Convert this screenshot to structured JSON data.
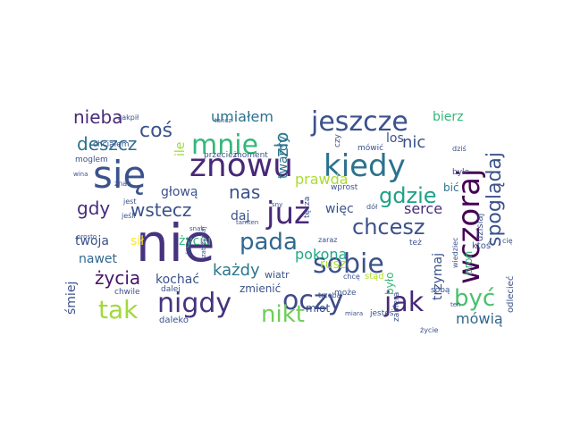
{
  "words": [
    {
      "text": "nie",
      "color": "#46327e",
      "rotated": false
    },
    {
      "text": "się",
      "color": "#3b528b",
      "rotated": false
    },
    {
      "text": "znowu",
      "color": "#482878",
      "rotated": false
    },
    {
      "text": "już",
      "color": "#482878",
      "rotated": false
    },
    {
      "text": "wczoraj",
      "color": "#440154",
      "rotated": true
    },
    {
      "text": "kiedy",
      "color": "#2c728e",
      "rotated": false
    },
    {
      "text": "jeszcze",
      "color": "#3b528b",
      "rotated": false
    },
    {
      "text": "sobie",
      "color": "#3b528b",
      "rotated": false
    },
    {
      "text": "oczy",
      "color": "#3e4a89",
      "rotated": false
    },
    {
      "text": "jak",
      "color": "#482878",
      "rotated": false
    },
    {
      "text": "mnie",
      "color": "#35b779",
      "rotated": false
    },
    {
      "text": "nigdy",
      "color": "#46327e",
      "rotated": false
    },
    {
      "text": "tak",
      "color": "#a0da39",
      "rotated": false
    },
    {
      "text": "nikt",
      "color": "#6ece58",
      "rotated": false
    },
    {
      "text": "być",
      "color": "#4ac16d",
      "rotated": false
    },
    {
      "text": "pada",
      "color": "#31688e",
      "rotated": false
    },
    {
      "text": "chcesz",
      "color": "#3b528b",
      "rotated": false
    },
    {
      "text": "gdzie",
      "color": "#1fa187",
      "rotated": false
    },
    {
      "text": "spoglądaj",
      "color": "#3b528b",
      "rotated": true
    },
    {
      "text": "coś",
      "color": "#3b528b",
      "rotated": false
    },
    {
      "text": "nieba",
      "color": "#472c7a",
      "rotated": false
    },
    {
      "text": "deszcz",
      "color": "#2c728e",
      "rotated": false
    },
    {
      "text": "wstecz",
      "color": "#3b528b",
      "rotated": false
    },
    {
      "text": "gdy",
      "color": "#472c7a",
      "rotated": false
    },
    {
      "text": "życia",
      "color": "#481467",
      "rotated": false
    },
    {
      "text": "każdy",
      "color": "#2a788e",
      "rotated": false
    },
    {
      "text": "nas",
      "color": "#3b528b",
      "rotated": false
    },
    {
      "text": "zło",
      "color": "#2a788e",
      "rotated": true
    },
    {
      "text": "nic",
      "color": "#3b528b",
      "rotated": false
    },
    {
      "text": "mówią",
      "color": "#31688e",
      "rotated": false
    },
    {
      "text": "trzymaj",
      "color": "#3b528b",
      "rotated": true
    },
    {
      "text": "serce",
      "color": "#472c7a",
      "rotated": false
    },
    {
      "text": "pokona",
      "color": "#22a884",
      "rotated": false
    },
    {
      "text": "prawda",
      "color": "#aadc32",
      "rotated": false
    },
    {
      "text": "twardy",
      "color": "#2c728e",
      "rotated": true
    },
    {
      "text": "umiałem",
      "color": "#2c728e",
      "rotated": false
    },
    {
      "text": "bierz",
      "color": "#35b779",
      "rotated": false
    },
    {
      "text": "los",
      "color": "#3b528b",
      "rotated": false
    },
    {
      "text": "bić",
      "color": "#2c728e",
      "rotated": false
    },
    {
      "text": "głową",
      "color": "#3b528b",
      "rotated": false
    },
    {
      "text": "ile",
      "color": "#a0da39",
      "rotated": true
    },
    {
      "text": "daj",
      "color": "#3b528b",
      "rotated": false
    },
    {
      "text": "więc",
      "color": "#3b528b",
      "rotated": false
    },
    {
      "text": "twoja",
      "color": "#3b528b",
      "rotated": false
    },
    {
      "text": "nawet",
      "color": "#31688e",
      "rotated": false
    },
    {
      "text": "sił",
      "color": "#fde725",
      "rotated": false
    },
    {
      "text": "życiu",
      "color": "#35b779",
      "rotated": false
    },
    {
      "text": "kochać",
      "color": "#3b528b",
      "rotated": false
    },
    {
      "text": "śmiej",
      "color": "#3b528b",
      "rotated": true
    },
    {
      "text": "zmienić",
      "color": "#3b528b",
      "rotated": false
    },
    {
      "text": "wiatr",
      "color": "#3b528b",
      "rotated": false
    },
    {
      "text": "młot",
      "color": "#3b528b",
      "rotated": false
    },
    {
      "text": "było",
      "color": "#35b779",
      "rotated": true
    },
    {
      "text": "broń",
      "color": "#35b779",
      "rotated": true
    },
    {
      "text": "rusz",
      "color": "#b5de2b",
      "rotated": false
    },
    {
      "text": "dzisiaj",
      "color": "#3b528b",
      "rotated": true
    },
    {
      "text": "ktoś",
      "color": "#3b528b",
      "rotated": false
    },
    {
      "text": "odlecieć",
      "color": "#3b528b",
      "rotated": true
    },
    {
      "text": "daleko",
      "color": "#3b528b",
      "rotated": false
    },
    {
      "text": "chwile",
      "color": "#3b528b",
      "rotated": false
    },
    {
      "text": "dalej",
      "color": "#3b528b",
      "rotated": false
    },
    {
      "text": "moglem",
      "color": "#3b528b",
      "rotated": false
    },
    {
      "text": "chciałem",
      "color": "#3b528b",
      "rotated": false
    },
    {
      "text": "znak",
      "color": "#3b528b",
      "rotated": false
    },
    {
      "text": "zakpił",
      "color": "#3b528b",
      "rotated": false
    },
    {
      "text": "tańcz",
      "color": "#3b528b",
      "rotated": false
    },
    {
      "text": "przecież",
      "color": "#3b528b",
      "rotated": false
    },
    {
      "text": "moment",
      "color": "#3b528b",
      "rotated": false
    },
    {
      "text": "tęcza",
      "color": "#3b528b",
      "rotated": true
    },
    {
      "text": "mówić",
      "color": "#3b528b",
      "rotated": false
    },
    {
      "text": "dziś",
      "color": "#3b528b",
      "rotated": false
    },
    {
      "text": "czy",
      "color": "#3b528b",
      "rotated": true
    },
    {
      "text": "wprost",
      "color": "#3b528b",
      "rotated": false
    },
    {
      "text": "dół",
      "color": "#3b528b",
      "rotated": false
    },
    {
      "text": "chcę",
      "color": "#3b528b",
      "rotated": false
    },
    {
      "text": "zaraz",
      "color": "#3b528b",
      "rotated": false
    },
    {
      "text": "też",
      "color": "#3b528b",
      "rotated": false
    },
    {
      "text": "stąd",
      "color": "#b5de2b",
      "rotated": false
    },
    {
      "text": "sobą",
      "color": "#3b528b",
      "rotated": false
    },
    {
      "text": "trzeba",
      "color": "#3b528b",
      "rotated": false
    },
    {
      "text": "zabiera",
      "color": "#3b528b",
      "rotated": true
    },
    {
      "text": "może",
      "color": "#3b528b",
      "rotated": false
    },
    {
      "text": "jesteś",
      "color": "#3b528b",
      "rotated": false
    },
    {
      "text": "miara",
      "color": "#3b528b",
      "rotated": false
    },
    {
      "text": "życie",
      "color": "#3b528b",
      "rotated": false
    },
    {
      "text": "ten",
      "color": "#3b528b",
      "rotated": false
    },
    {
      "text": "wiedziec",
      "color": "#3b528b",
      "rotated": true
    },
    {
      "text": "byle",
      "color": "#3b528b",
      "rotated": false
    },
    {
      "text": "cię",
      "color": "#3b528b",
      "rotated": false
    },
    {
      "text": "jest",
      "color": "#3b528b",
      "rotated": false
    },
    {
      "text": "jeśli",
      "color": "#3b528b",
      "rotated": false
    },
    {
      "text": "wina",
      "color": "#3b528b",
      "rotated": false
    },
    {
      "text": "prosto",
      "color": "#3b528b",
      "rotated": false
    },
    {
      "text": "świat",
      "color": "#3b528b",
      "rotated": true
    },
    {
      "text": "zatrzymaj",
      "color": "#3b528b",
      "rotated": true
    },
    {
      "text": "sny",
      "color": "#3b528b",
      "rotated": false
    },
    {
      "text": "tamten",
      "color": "#3b528b",
      "rotated": false
    },
    {
      "text": "snak",
      "color": "#3b528b",
      "rotated": false
    }
  ]
}
